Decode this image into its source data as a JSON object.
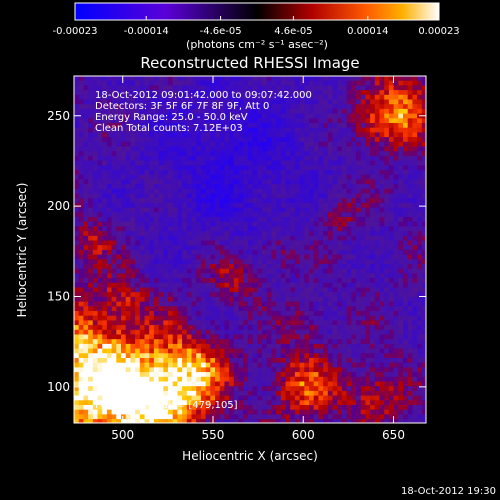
{
  "chart_data": {
    "type": "heatmap",
    "title": "Reconstructed RHESSI Image",
    "xlabel": "Heliocentric X (arcsec)",
    "ylabel": "Heliocentric Y (arcsec)",
    "xlim": [
      473,
      668
    ],
    "ylim": [
      80,
      272
    ],
    "x_ticks": [
      500,
      550,
      600,
      650
    ],
    "x_tick_labels": [
      "500",
      "550",
      "600",
      "650"
    ],
    "y_ticks": [
      100,
      150,
      200,
      250
    ],
    "y_tick_labels": [
      "100",
      "150",
      "200",
      "250"
    ],
    "colorbar": {
      "min": -0.00023,
      "max": 0.00023,
      "tick_values": [
        -0.00023,
        -0.00014,
        -4.6e-05,
        4.6e-05,
        0.00014,
        0.00023
      ],
      "tick_labels": [
        "-0.00023",
        "-0.00014",
        "-4.6e-05",
        "4.6e-05",
        "0.00014",
        "0.00023"
      ],
      "unit_label": "(photons cm⁻² s⁻¹ asec⁻²)"
    },
    "annotations": [
      "18-Oct-2012 09:01:42.000 to 09:07:42.000",
      "Detectors: 3F 5F 6F 7F 8F 9F, Att 0",
      "Energy Range: 25.0 - 50.0 keV",
      "Clean    Total counts: 7.12E+03"
    ],
    "peak_label": "Position of Peak = [479,105]",
    "peak": [
      479,
      105
    ],
    "sources": [
      {
        "x": 479,
        "y": 105,
        "radius": 28,
        "amplitude": 1.0
      },
      {
        "x": 520,
        "y": 92,
        "radius": 18,
        "amplitude": 0.75
      },
      {
        "x": 540,
        "y": 110,
        "radius": 14,
        "amplitude": 0.55
      },
      {
        "x": 600,
        "y": 100,
        "radius": 14,
        "amplitude": 0.55
      },
      {
        "x": 640,
        "y": 95,
        "radius": 12,
        "amplitude": 0.45
      },
      {
        "x": 655,
        "y": 255,
        "radius": 14,
        "amplitude": 0.6
      },
      {
        "x": 640,
        "y": 245,
        "radius": 10,
        "amplitude": 0.4
      },
      {
        "x": 560,
        "y": 160,
        "radius": 10,
        "amplitude": 0.4
      },
      {
        "x": 585,
        "y": 175,
        "radius": 8,
        "amplitude": 0.35
      },
      {
        "x": 480,
        "y": 180,
        "radius": 10,
        "amplitude": 0.35
      },
      {
        "x": 500,
        "y": 150,
        "radius": 8,
        "amplitude": 0.3
      },
      {
        "x": 600,
        "y": 135,
        "radius": 8,
        "amplitude": 0.3
      },
      {
        "x": 620,
        "y": 195,
        "radius": 9,
        "amplitude": 0.3
      }
    ]
  },
  "footer": {
    "timestamp": "18-Oct-2012 19:30"
  }
}
